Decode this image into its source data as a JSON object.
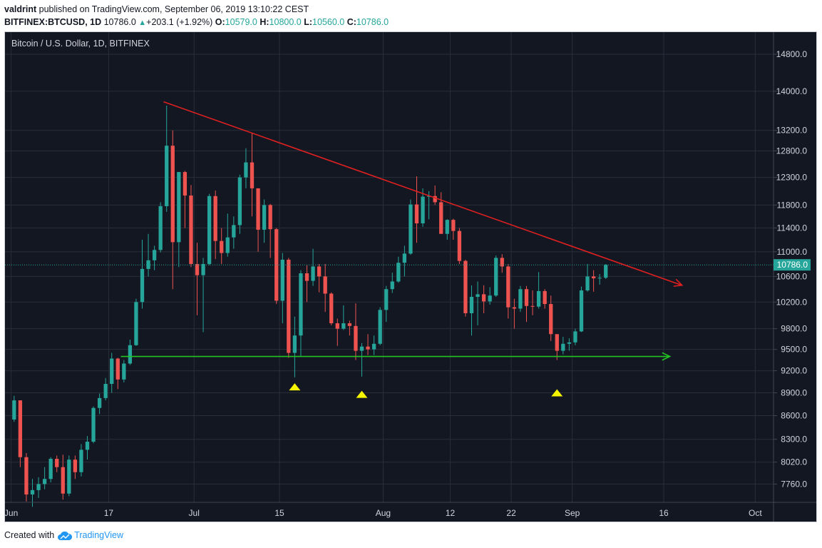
{
  "header": {
    "user": "valdrint",
    "published_text": "published on TradingView.com, September 06, 2019 13:10:22 CEST",
    "symbol": "BITFINEX:BTCUSD, 1D",
    "last": "10786.0",
    "change": "+203.1 (+1.92%)",
    "o_label": "O:",
    "o": "10579.0",
    "h_label": "H:",
    "h": "10800.0",
    "l_label": "L:",
    "l": "10560.0",
    "c_label": "C:",
    "c": "10786.0"
  },
  "footer": {
    "created_with": "Created with",
    "brand": "TradingView"
  },
  "colors": {
    "background": "#131722",
    "grid": "#2a2e39",
    "up": "#26a69a",
    "down": "#ef5350",
    "resistance": "#e02020",
    "support": "#22c322",
    "marker": "#f5f500",
    "axis_text": "#d1d4dc"
  },
  "chart_data": {
    "type": "candlestick",
    "title": "Bitcoin / U.S. Dollar, 1D, BITFINEX",
    "x_ticks": [
      {
        "label": "Jun",
        "date": "2019-06-01"
      },
      {
        "label": "17",
        "date": "2019-06-17"
      },
      {
        "label": "Jul",
        "date": "2019-07-01"
      },
      {
        "label": "15",
        "date": "2019-07-15"
      },
      {
        "label": "Aug",
        "date": "2019-08-01"
      },
      {
        "label": "12",
        "date": "2019-08-12"
      },
      {
        "label": "22",
        "date": "2019-08-22"
      },
      {
        "label": "Sep",
        "date": "2019-09-01"
      },
      {
        "label": "16",
        "date": "2019-09-16"
      },
      {
        "label": "Oct",
        "date": "2019-10-01"
      }
    ],
    "y_scale": "log",
    "y_ticks": [
      7760,
      8020,
      8300,
      8600,
      8900,
      9200,
      9500,
      9800,
      10200,
      10600,
      11000,
      11400,
      11800,
      12300,
      12800,
      13200,
      14000,
      14800
    ],
    "y_tick_labels": [
      "7760.0",
      "8020.0",
      "8300.0",
      "8600.0",
      "8900.0",
      "9200.0",
      "9500.0",
      "9800.0",
      "10200.0",
      "10600.0",
      "11000.0",
      "11400.0",
      "11800.0",
      "12300.0",
      "12800.0",
      "13200.0",
      "14000.0",
      "14800.0"
    ],
    "ylim": [
      7550,
      15300
    ],
    "xlim": [
      "2019-05-31",
      "2019-10-04"
    ],
    "last_price": 10786,
    "last_price_label": "10786.0",
    "candles": [
      {
        "d": "2019-06-01",
        "o": 8550,
        "h": 8860,
        "l": 8520,
        "c": 8800
      },
      {
        "d": "2019-06-02",
        "o": 8800,
        "h": 8800,
        "l": 7960,
        "c": 8080
      },
      {
        "d": "2019-06-03",
        "o": 8080,
        "h": 8130,
        "l": 7560,
        "c": 7640
      },
      {
        "d": "2019-06-04",
        "o": 7640,
        "h": 7820,
        "l": 7500,
        "c": 7690
      },
      {
        "d": "2019-06-05",
        "o": 7690,
        "h": 7840,
        "l": 7600,
        "c": 7760
      },
      {
        "d": "2019-06-06",
        "o": 7760,
        "h": 7960,
        "l": 7700,
        "c": 7820
      },
      {
        "d": "2019-06-07",
        "o": 7820,
        "h": 8080,
        "l": 7780,
        "c": 8060
      },
      {
        "d": "2019-06-08",
        "o": 8060,
        "h": 8100,
        "l": 7900,
        "c": 7960
      },
      {
        "d": "2019-06-09",
        "o": 7960,
        "h": 8110,
        "l": 7580,
        "c": 7650
      },
      {
        "d": "2019-06-10",
        "o": 7650,
        "h": 8100,
        "l": 7620,
        "c": 8050
      },
      {
        "d": "2019-06-11",
        "o": 8050,
        "h": 8100,
        "l": 7820,
        "c": 7900
      },
      {
        "d": "2019-06-12",
        "o": 7900,
        "h": 8240,
        "l": 7850,
        "c": 8170
      },
      {
        "d": "2019-06-13",
        "o": 8170,
        "h": 8340,
        "l": 8050,
        "c": 8270
      },
      {
        "d": "2019-06-14",
        "o": 8270,
        "h": 8720,
        "l": 8250,
        "c": 8700
      },
      {
        "d": "2019-06-15",
        "o": 8700,
        "h": 8890,
        "l": 8620,
        "c": 8830
      },
      {
        "d": "2019-06-16",
        "o": 8830,
        "h": 9100,
        "l": 8800,
        "c": 9020
      },
      {
        "d": "2019-06-17",
        "o": 9020,
        "h": 9450,
        "l": 8900,
        "c": 9370
      },
      {
        "d": "2019-06-18",
        "o": 9370,
        "h": 9380,
        "l": 8950,
        "c": 9080
      },
      {
        "d": "2019-06-19",
        "o": 9080,
        "h": 9350,
        "l": 9040,
        "c": 9300
      },
      {
        "d": "2019-06-20",
        "o": 9300,
        "h": 9640,
        "l": 9280,
        "c": 9560
      },
      {
        "d": "2019-06-21",
        "o": 9560,
        "h": 10250,
        "l": 9550,
        "c": 10200
      },
      {
        "d": "2019-06-22",
        "o": 10200,
        "h": 11200,
        "l": 10100,
        "c": 10720
      },
      {
        "d": "2019-06-23",
        "o": 10720,
        "h": 11300,
        "l": 10600,
        "c": 10860
      },
      {
        "d": "2019-06-24",
        "o": 10860,
        "h": 11100,
        "l": 10700,
        "c": 11030
      },
      {
        "d": "2019-06-25",
        "o": 11030,
        "h": 11850,
        "l": 10990,
        "c": 11780
      },
      {
        "d": "2019-06-26",
        "o": 11780,
        "h": 13700,
        "l": 11680,
        "c": 12900
      },
      {
        "d": "2019-06-27",
        "o": 12900,
        "h": 13200,
        "l": 10400,
        "c": 11160
      },
      {
        "d": "2019-06-28",
        "o": 11160,
        "h": 12400,
        "l": 10750,
        "c": 12400
      },
      {
        "d": "2019-06-29",
        "o": 12400,
        "h": 12420,
        "l": 11400,
        "c": 11970
      },
      {
        "d": "2019-06-30",
        "o": 11970,
        "h": 12160,
        "l": 10750,
        "c": 10800
      },
      {
        "d": "2019-07-01",
        "o": 10800,
        "h": 11150,
        "l": 10000,
        "c": 10620
      },
      {
        "d": "2019-07-02",
        "o": 10620,
        "h": 10900,
        "l": 9750,
        "c": 10800
      },
      {
        "d": "2019-07-03",
        "o": 10800,
        "h": 12000,
        "l": 10780,
        "c": 11960
      },
      {
        "d": "2019-07-04",
        "o": 11960,
        "h": 12060,
        "l": 10880,
        "c": 11180
      },
      {
        "d": "2019-07-05",
        "o": 11180,
        "h": 11400,
        "l": 10800,
        "c": 10980
      },
      {
        "d": "2019-07-06",
        "o": 10980,
        "h": 11650,
        "l": 10920,
        "c": 11240
      },
      {
        "d": "2019-07-07",
        "o": 11240,
        "h": 11600,
        "l": 11050,
        "c": 11450
      },
      {
        "d": "2019-07-08",
        "o": 11450,
        "h": 12350,
        "l": 11300,
        "c": 12300
      },
      {
        "d": "2019-07-09",
        "o": 12300,
        "h": 12850,
        "l": 12100,
        "c": 12580
      },
      {
        "d": "2019-07-10",
        "o": 12580,
        "h": 13150,
        "l": 11600,
        "c": 12100
      },
      {
        "d": "2019-07-11",
        "o": 12100,
        "h": 12100,
        "l": 11000,
        "c": 11370
      },
      {
        "d": "2019-07-12",
        "o": 11370,
        "h": 11900,
        "l": 11150,
        "c": 11800
      },
      {
        "d": "2019-07-13",
        "o": 11800,
        "h": 11820,
        "l": 10900,
        "c": 11380
      },
      {
        "d": "2019-07-14",
        "o": 11380,
        "h": 11400,
        "l": 10170,
        "c": 10220
      },
      {
        "d": "2019-07-15",
        "o": 10220,
        "h": 10980,
        "l": 9880,
        "c": 10870
      },
      {
        "d": "2019-07-16",
        "o": 10870,
        "h": 10900,
        "l": 9380,
        "c": 9450
      },
      {
        "d": "2019-07-17",
        "o": 9450,
        "h": 9980,
        "l": 9110,
        "c": 9700
      },
      {
        "d": "2019-07-18",
        "o": 9700,
        "h": 10700,
        "l": 9400,
        "c": 10650
      },
      {
        "d": "2019-07-19",
        "o": 10650,
        "h": 10780,
        "l": 10200,
        "c": 10530
      },
      {
        "d": "2019-07-20",
        "o": 10530,
        "h": 11050,
        "l": 10450,
        "c": 10760
      },
      {
        "d": "2019-07-21",
        "o": 10760,
        "h": 10800,
        "l": 10350,
        "c": 10600
      },
      {
        "d": "2019-07-22",
        "o": 10600,
        "h": 10800,
        "l": 10050,
        "c": 10330
      },
      {
        "d": "2019-07-23",
        "o": 10330,
        "h": 10350,
        "l": 9850,
        "c": 9880
      },
      {
        "d": "2019-07-24",
        "o": 9880,
        "h": 9950,
        "l": 9550,
        "c": 9800
      },
      {
        "d": "2019-07-25",
        "o": 9800,
        "h": 10150,
        "l": 9780,
        "c": 9880
      },
      {
        "d": "2019-07-26",
        "o": 9880,
        "h": 9920,
        "l": 9700,
        "c": 9840
      },
      {
        "d": "2019-07-27",
        "o": 9840,
        "h": 10180,
        "l": 9350,
        "c": 9480
      },
      {
        "d": "2019-07-28",
        "o": 9480,
        "h": 9590,
        "l": 9120,
        "c": 9540
      },
      {
        "d": "2019-07-29",
        "o": 9540,
        "h": 9720,
        "l": 9420,
        "c": 9500
      },
      {
        "d": "2019-07-30",
        "o": 9500,
        "h": 9700,
        "l": 9420,
        "c": 9580
      },
      {
        "d": "2019-07-31",
        "o": 9580,
        "h": 10120,
        "l": 9560,
        "c": 10080
      },
      {
        "d": "2019-08-01",
        "o": 10080,
        "h": 10450,
        "l": 9900,
        "c": 10400
      },
      {
        "d": "2019-08-02",
        "o": 10400,
        "h": 10660,
        "l": 10340,
        "c": 10520
      },
      {
        "d": "2019-08-03",
        "o": 10520,
        "h": 10920,
        "l": 10500,
        "c": 10820
      },
      {
        "d": "2019-08-04",
        "o": 10820,
        "h": 11100,
        "l": 10600,
        "c": 10970
      },
      {
        "d": "2019-08-05",
        "o": 10970,
        "h": 11900,
        "l": 10950,
        "c": 11810
      },
      {
        "d": "2019-08-06",
        "o": 11810,
        "h": 12320,
        "l": 11150,
        "c": 11480
      },
      {
        "d": "2019-08-07",
        "o": 11480,
        "h": 12100,
        "l": 11420,
        "c": 11950
      },
      {
        "d": "2019-08-08",
        "o": 11950,
        "h": 12050,
        "l": 11550,
        "c": 11960
      },
      {
        "d": "2019-08-09",
        "o": 11960,
        "h": 12150,
        "l": 11800,
        "c": 11850
      },
      {
        "d": "2019-08-10",
        "o": 11850,
        "h": 12030,
        "l": 11300,
        "c": 11300
      },
      {
        "d": "2019-08-11",
        "o": 11300,
        "h": 11550,
        "l": 11200,
        "c": 11540
      },
      {
        "d": "2019-08-12",
        "o": 11540,
        "h": 11560,
        "l": 11200,
        "c": 11350
      },
      {
        "d": "2019-08-13",
        "o": 11350,
        "h": 11400,
        "l": 10800,
        "c": 10850
      },
      {
        "d": "2019-08-14",
        "o": 10850,
        "h": 10870,
        "l": 9980,
        "c": 10030
      },
      {
        "d": "2019-08-15",
        "o": 10030,
        "h": 10460,
        "l": 9700,
        "c": 10280
      },
      {
        "d": "2019-08-16",
        "o": 10280,
        "h": 10520,
        "l": 9850,
        "c": 10320
      },
      {
        "d": "2019-08-17",
        "o": 10320,
        "h": 10460,
        "l": 10030,
        "c": 10210
      },
      {
        "d": "2019-08-18",
        "o": 10210,
        "h": 10430,
        "l": 10160,
        "c": 10300
      },
      {
        "d": "2019-08-19",
        "o": 10300,
        "h": 10940,
        "l": 10280,
        "c": 10900
      },
      {
        "d": "2019-08-20",
        "o": 10900,
        "h": 10960,
        "l": 10660,
        "c": 10760
      },
      {
        "d": "2019-08-21",
        "o": 10760,
        "h": 10800,
        "l": 9950,
        "c": 10120
      },
      {
        "d": "2019-08-22",
        "o": 10120,
        "h": 10250,
        "l": 9800,
        "c": 10100
      },
      {
        "d": "2019-08-23",
        "o": 10100,
        "h": 10450,
        "l": 10050,
        "c": 10400
      },
      {
        "d": "2019-08-24",
        "o": 10400,
        "h": 10450,
        "l": 9900,
        "c": 10140
      },
      {
        "d": "2019-08-25",
        "o": 10140,
        "h": 10380,
        "l": 10000,
        "c": 10130
      },
      {
        "d": "2019-08-26",
        "o": 10130,
        "h": 10670,
        "l": 10100,
        "c": 10370
      },
      {
        "d": "2019-08-27",
        "o": 10370,
        "h": 10400,
        "l": 10100,
        "c": 10170
      },
      {
        "d": "2019-08-28",
        "o": 10170,
        "h": 10300,
        "l": 9620,
        "c": 9720
      },
      {
        "d": "2019-08-29",
        "o": 9720,
        "h": 9720,
        "l": 9350,
        "c": 9480
      },
      {
        "d": "2019-08-30",
        "o": 9480,
        "h": 9680,
        "l": 9430,
        "c": 9580
      },
      {
        "d": "2019-08-31",
        "o": 9580,
        "h": 9660,
        "l": 9480,
        "c": 9600
      },
      {
        "d": "2019-09-01",
        "o": 9600,
        "h": 9800,
        "l": 9560,
        "c": 9760
      },
      {
        "d": "2019-09-02",
        "o": 9760,
        "h": 10440,
        "l": 9750,
        "c": 10380
      },
      {
        "d": "2019-09-03",
        "o": 10380,
        "h": 10800,
        "l": 10360,
        "c": 10600
      },
      {
        "d": "2019-09-04",
        "o": 10600,
        "h": 10700,
        "l": 10360,
        "c": 10570
      },
      {
        "d": "2019-09-05",
        "o": 10570,
        "h": 10640,
        "l": 10470,
        "c": 10579
      },
      {
        "d": "2019-09-06",
        "o": 10579,
        "h": 10800,
        "l": 10560,
        "c": 10786
      }
    ],
    "resistance_line": {
      "x1": "2019-06-26",
      "y1": 13780,
      "x2": "2019-09-19",
      "y2": 10460
    },
    "support_line": {
      "x1": "2019-06-19",
      "y1": 9400,
      "x2": "2019-09-17",
      "y2": 9400
    },
    "support_markers": [
      {
        "d": "2019-07-17",
        "price": 8980
      },
      {
        "d": "2019-07-28",
        "price": 8880
      },
      {
        "d": "2019-08-29",
        "price": 8900
      }
    ]
  }
}
